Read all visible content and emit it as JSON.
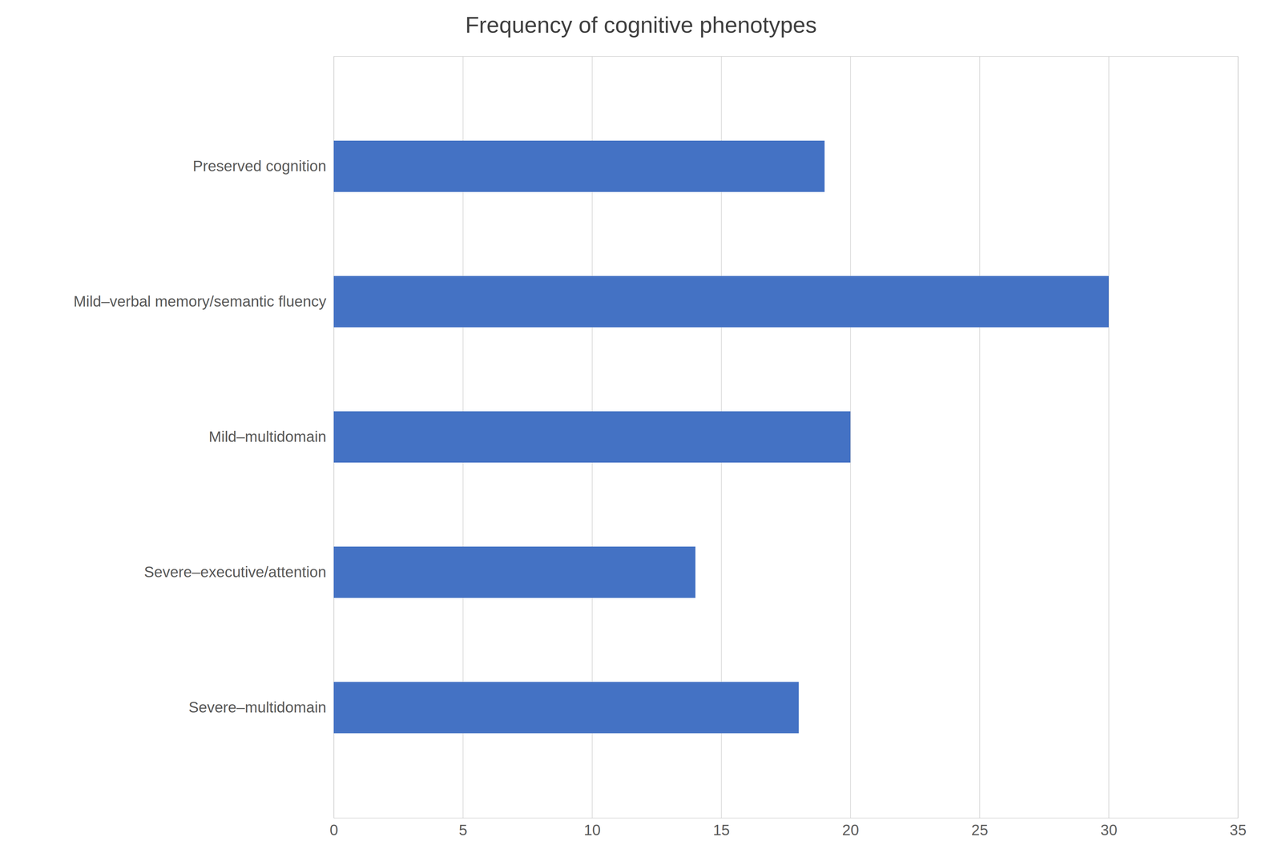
{
  "chart_data": {
    "type": "bar",
    "orientation": "horizontal",
    "title": "Frequency of cognitive phenotypes",
    "categories": [
      "Severe–multidomain",
      "Severe–executive/attention",
      "Mild–multidomain",
      "Mild–verbal memory/semantic fluency",
      "Preserved cognition"
    ],
    "values": [
      18,
      14,
      20,
      30,
      19
    ],
    "color": "#4472C4",
    "xlim": [
      0,
      35
    ],
    "xticks": [
      0,
      5,
      10,
      15,
      20,
      25,
      30,
      35
    ],
    "grid": true
  }
}
